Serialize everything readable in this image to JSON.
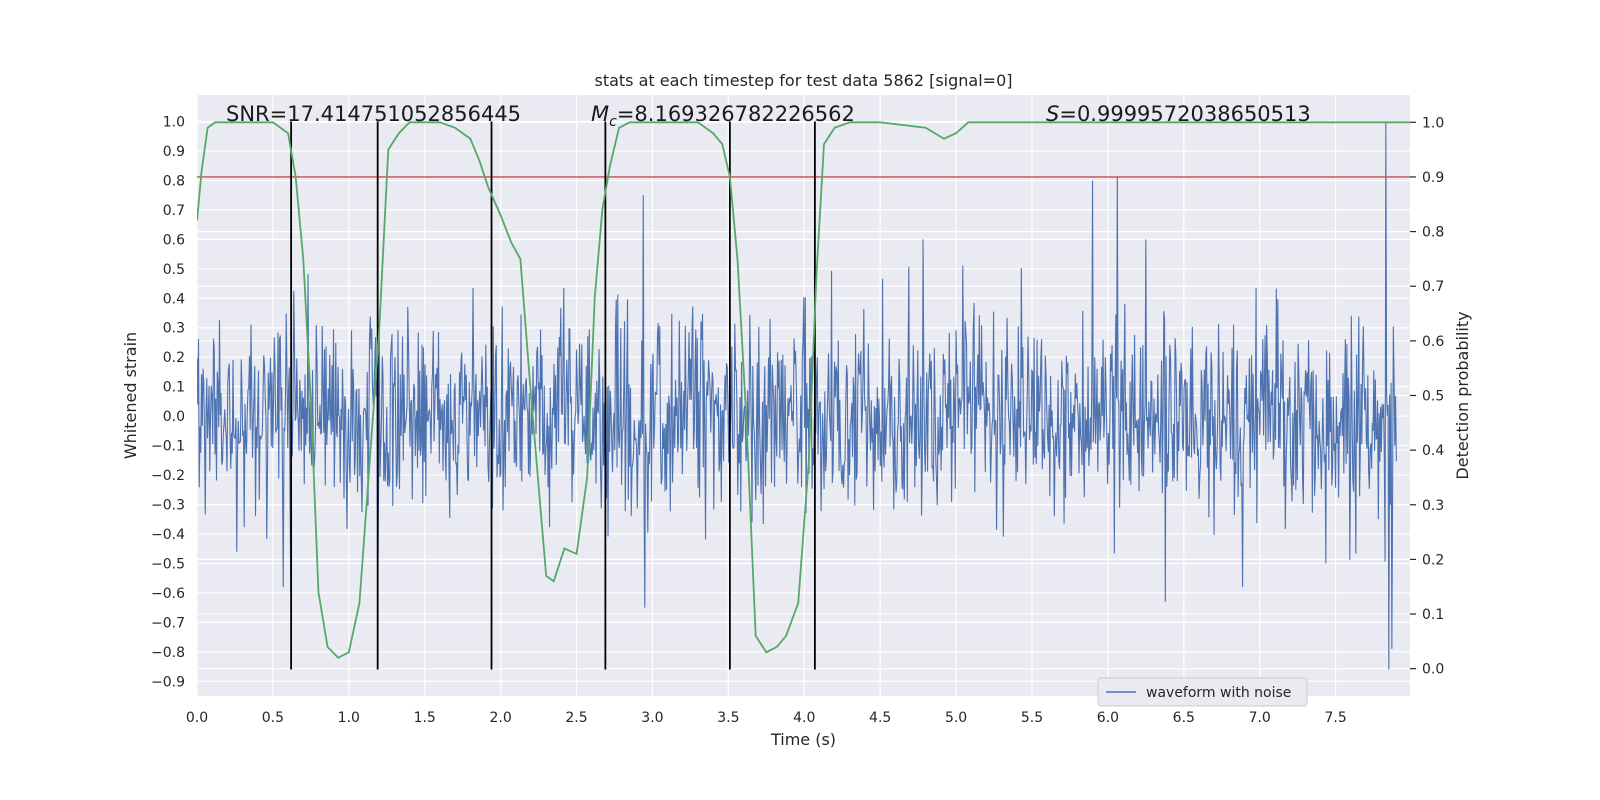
{
  "chart_data": {
    "type": "line",
    "title": "stats at each timestep for test data 5862 [signal=0]",
    "xlabel": "Time (s)",
    "ylabel_left": "Whitened strain",
    "ylabel_right": "Detection probability",
    "xlim": [
      0.0,
      7.99
    ],
    "ylim_left": [
      -0.95,
      1.09
    ],
    "ylim_right": [
      -0.05,
      1.05
    ],
    "x_ticks": [
      "0.0",
      "0.5",
      "1.0",
      "1.5",
      "2.0",
      "2.5",
      "3.0",
      "3.5",
      "4.0",
      "4.5",
      "5.0",
      "5.5",
      "6.0",
      "6.5",
      "7.0",
      "7.5"
    ],
    "x_tick_values": [
      0.0,
      0.5,
      1.0,
      1.5,
      2.0,
      2.5,
      3.0,
      3.5,
      4.0,
      4.5,
      5.0,
      5.5,
      6.0,
      6.5,
      7.0,
      7.5
    ],
    "y_left_ticks": [
      "1.0",
      "0.9",
      "0.8",
      "0.7",
      "0.6",
      "0.5",
      "0.4",
      "0.3",
      "0.2",
      "0.1",
      "0.0",
      "-0.1",
      "-0.2",
      "-0.3",
      "-0.4",
      "-0.5",
      "-0.6",
      "-0.7",
      "-0.8",
      "-0.9"
    ],
    "y_left_tick_values": [
      1.0,
      0.9,
      0.8,
      0.7,
      0.6,
      0.5,
      0.4,
      0.3,
      0.2,
      0.1,
      0.0,
      -0.1,
      -0.2,
      -0.3,
      -0.4,
      -0.5,
      -0.6,
      -0.7,
      -0.8,
      -0.9
    ],
    "y_right_ticks": [
      "1.0",
      "0.9",
      "0.8",
      "0.7",
      "0.6",
      "0.5",
      "0.4",
      "0.3",
      "0.2",
      "0.1",
      "0.0"
    ],
    "y_right_tick_values": [
      1.0,
      0.9,
      0.8,
      0.7,
      0.6,
      0.5,
      0.4,
      0.3,
      0.2,
      0.1,
      0.0
    ],
    "annotations": {
      "snr": "SNR=17.414751052856445",
      "mc_symbol": "M",
      "mc_sub": "c",
      "mc_value": "=8.169326782226562",
      "s_symbol": "S",
      "s_value": "=0.9999572038650513"
    },
    "legend": {
      "label": "waveform with noise",
      "location": "lower-right"
    },
    "threshold_line": {
      "value": 0.9,
      "axis": "right",
      "color": "#c44e52"
    },
    "vertical_lines": [
      0.62,
      1.19,
      1.94,
      2.69,
      3.51,
      4.07
    ],
    "vertical_line_range": [
      -0.86,
      1.0
    ],
    "waveform": {
      "name": "waveform with noise",
      "color": "#4c72b0",
      "duration": 7.9,
      "samples": 1600,
      "noise_std": 0.17,
      "spikes": [
        {
          "t": 0.62,
          "v": 0.71
        },
        {
          "t": 0.62,
          "v": -0.6
        },
        {
          "t": 1.19,
          "v": 0.37
        },
        {
          "t": 1.19,
          "v": -0.59
        },
        {
          "t": 2.94,
          "v": 0.75
        },
        {
          "t": 2.95,
          "v": -0.65
        },
        {
          "t": 5.9,
          "v": 0.8
        },
        {
          "t": 6.06,
          "v": 0.81
        },
        {
          "t": 6.38,
          "v": -0.63
        },
        {
          "t": 7.83,
          "v": 1.0
        },
        {
          "t": 7.85,
          "v": -0.86
        },
        {
          "t": 7.87,
          "v": -0.79
        }
      ]
    },
    "probability": {
      "name": "detection probability",
      "color": "#55a868",
      "x": [
        0.0,
        0.03,
        0.07,
        0.12,
        0.2,
        0.3,
        0.4,
        0.5,
        0.55,
        0.6,
        0.65,
        0.7,
        0.75,
        0.8,
        0.86,
        0.93,
        1.0,
        1.07,
        1.13,
        1.2,
        1.26,
        1.33,
        1.4,
        1.5,
        1.6,
        1.7,
        1.8,
        1.86,
        1.92,
        2.0,
        2.07,
        2.13,
        2.2,
        2.3,
        2.35,
        2.42,
        2.5,
        2.57,
        2.62,
        2.67,
        2.72,
        2.78,
        2.85,
        2.95,
        3.1,
        3.3,
        3.4,
        3.46,
        3.51,
        3.56,
        3.62,
        3.68,
        3.75,
        3.82,
        3.88,
        3.96,
        4.03,
        4.08,
        4.13,
        4.2,
        4.3,
        4.5,
        4.8,
        4.92,
        5.0,
        5.08,
        5.2,
        5.4,
        5.6,
        6.0,
        6.5,
        7.0,
        7.5,
        7.99
      ],
      "y": [
        0.82,
        0.91,
        0.99,
        1.0,
        1.0,
        1.0,
        1.0,
        1.0,
        0.99,
        0.98,
        0.9,
        0.75,
        0.49,
        0.14,
        0.04,
        0.02,
        0.03,
        0.12,
        0.35,
        0.62,
        0.95,
        0.98,
        1.0,
        1.0,
        1.0,
        0.99,
        0.97,
        0.93,
        0.88,
        0.83,
        0.78,
        0.75,
        0.5,
        0.17,
        0.16,
        0.22,
        0.21,
        0.35,
        0.68,
        0.84,
        0.92,
        0.99,
        1.0,
        1.0,
        1.0,
        1.0,
        0.98,
        0.96,
        0.9,
        0.75,
        0.45,
        0.06,
        0.03,
        0.04,
        0.06,
        0.12,
        0.38,
        0.72,
        0.96,
        0.99,
        1.0,
        1.0,
        0.99,
        0.97,
        0.98,
        1.0,
        1.0,
        1.0,
        1.0,
        1.0,
        1.0,
        1.0,
        1.0,
        1.0
      ]
    }
  }
}
